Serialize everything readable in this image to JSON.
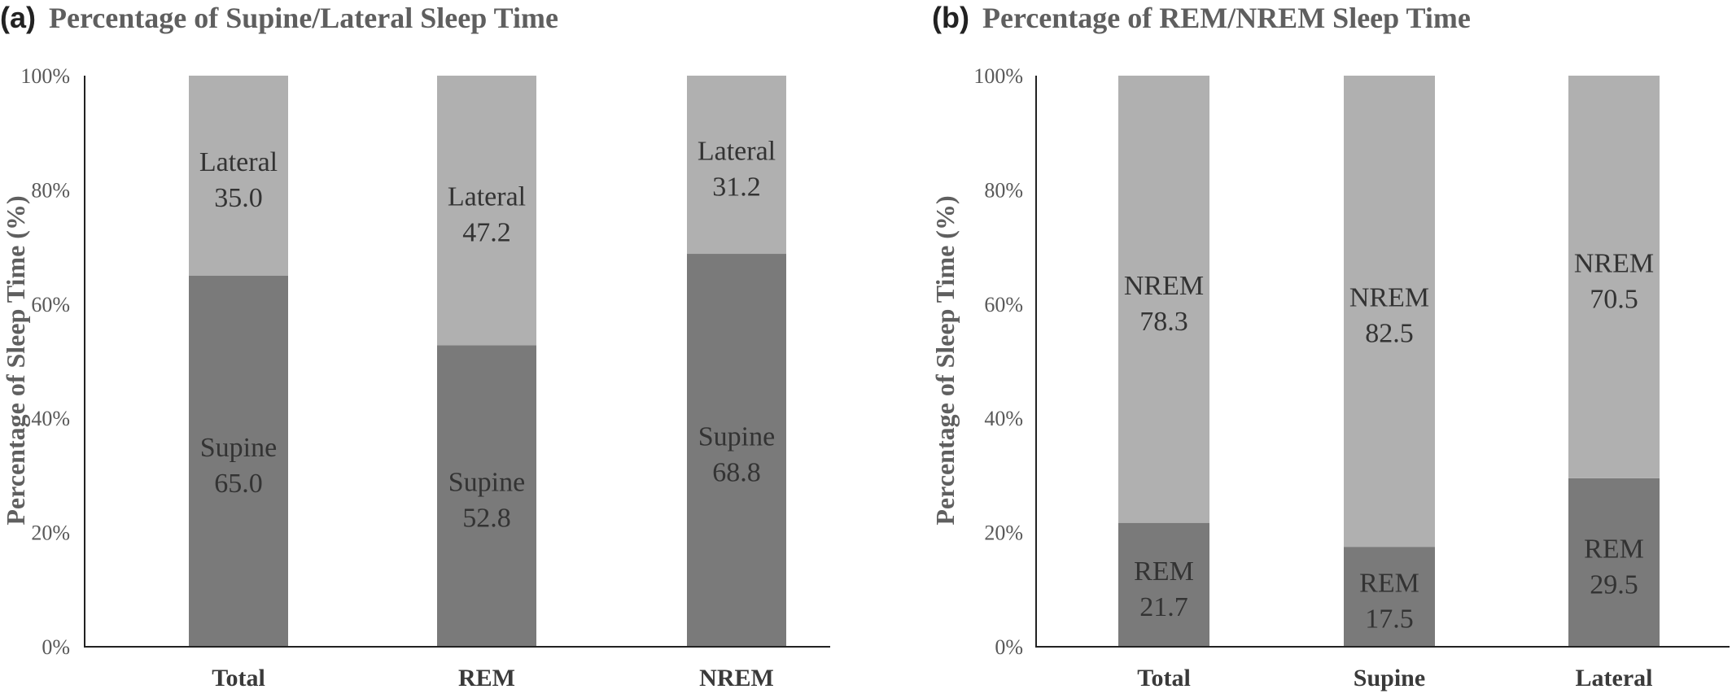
{
  "chart_data": [
    {
      "type": "bar",
      "stacked": true,
      "panel": "(a)",
      "title": "Percentage of Supine/Lateral Sleep Time",
      "ylabel": "Percentage of Sleep Time (%)",
      "xlabel": "",
      "ylim": [
        0,
        100
      ],
      "yticks": [
        "0%",
        "20%",
        "40%",
        "60%",
        "80%",
        "100%"
      ],
      "categories": [
        "Total",
        "REM",
        "NREM"
      ],
      "series": [
        {
          "name": "Supine",
          "values": [
            65.0,
            52.8,
            68.8
          ],
          "color": "#7a7a7a"
        },
        {
          "name": "Lateral",
          "values": [
            35.0,
            47.2,
            31.2
          ],
          "color": "#b0b0b0"
        }
      ],
      "value_labels": [
        [
          "65.0",
          "52.8",
          "68.8"
        ],
        [
          "35.0",
          "47.2",
          "31.2"
        ]
      ],
      "grid": false
    },
    {
      "type": "bar",
      "stacked": true,
      "panel": "(b)",
      "title": "Percentage of REM/NREM Sleep Time",
      "ylabel": "Percentage of Sleep Time (%)",
      "xlabel": "",
      "ylim": [
        0,
        100
      ],
      "yticks": [
        "0%",
        "20%",
        "40%",
        "60%",
        "80%",
        "100%"
      ],
      "categories": [
        "Total",
        "Supine",
        "Lateral"
      ],
      "series": [
        {
          "name": "REM",
          "values": [
            21.7,
            17.5,
            29.5
          ],
          "color": "#7a7a7a"
        },
        {
          "name": "NREM",
          "values": [
            78.3,
            82.5,
            70.5
          ],
          "color": "#b0b0b0"
        }
      ],
      "value_labels": [
        [
          "21.7",
          "17.5",
          "29.5"
        ],
        [
          "78.3",
          "82.5",
          "70.5"
        ]
      ],
      "grid": false
    }
  ]
}
